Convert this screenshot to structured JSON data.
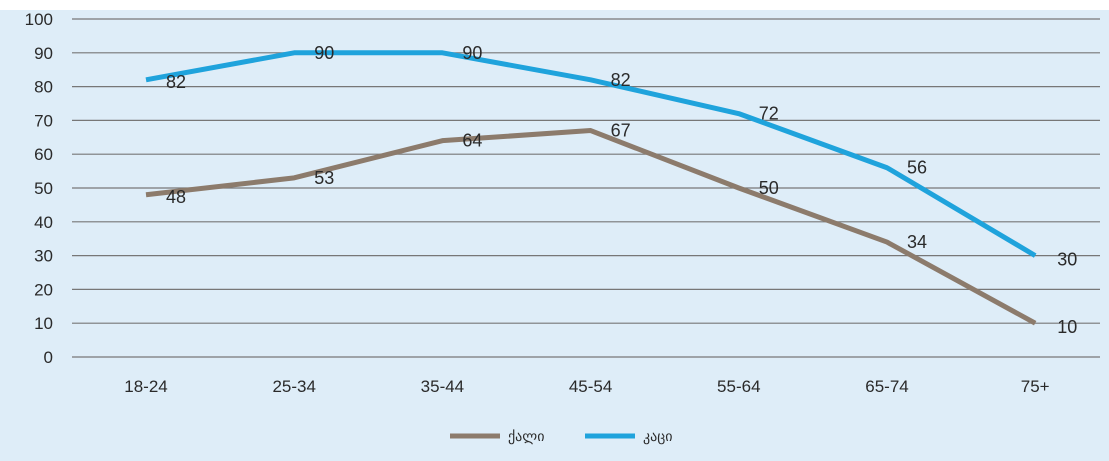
{
  "chart_data": {
    "type": "line",
    "title": "",
    "xlabel": "",
    "ylabel": "",
    "categories": [
      "18-24",
      "25-34",
      "35-44",
      "45-54",
      "55-64",
      "65-74",
      "75+"
    ],
    "ylim": [
      0,
      100
    ],
    "yticks": [
      0,
      10,
      20,
      30,
      40,
      50,
      60,
      70,
      80,
      90,
      100
    ],
    "grid": true,
    "legend_position": "bottom",
    "series": [
      {
        "name": "ქალი",
        "color": "#8c7b6c",
        "values": [
          48,
          53,
          64,
          67,
          50,
          34,
          10
        ],
        "labels": [
          "48",
          "53",
          "64",
          "67",
          "50",
          "34",
          "10"
        ]
      },
      {
        "name": "კაცი",
        "color": "#1fa3dc",
        "values": [
          82,
          90,
          90,
          82,
          72,
          56,
          30
        ],
        "labels": [
          "82",
          "90",
          "90",
          "82",
          "72",
          "56",
          "30"
        ]
      }
    ]
  },
  "colors": {
    "background": "#deedf8",
    "gridline": "#777777"
  }
}
